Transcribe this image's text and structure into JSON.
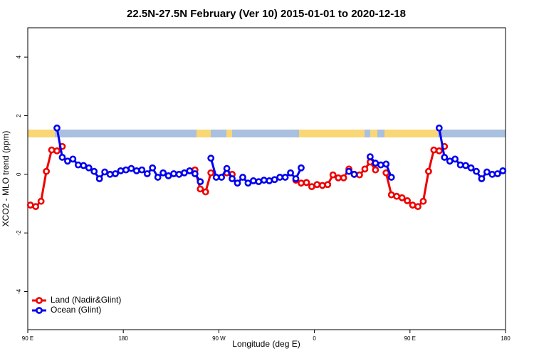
{
  "chart_data": {
    "type": "line",
    "title": "22.5N-27.5N February (Ver 10)   2015-01-01 to 2020-12-18",
    "x_label": "Longitude (deg E)",
    "y_label": "XCO2 - MLO trend (ppm)",
    "xlim": [
      90,
      540
    ],
    "xticks": [
      {
        "value": 90,
        "label": "90 E"
      },
      {
        "value": 180,
        "label": "180"
      },
      {
        "value": 270,
        "label": "90 W"
      },
      {
        "value": 360,
        "label": "0"
      },
      {
        "value": 450,
        "label": "90 E"
      },
      {
        "value": 540,
        "label": "180"
      }
    ],
    "ylim": [
      -5.3,
      5.0
    ],
    "yticks": [
      -4,
      -2,
      0,
      2,
      4
    ],
    "legend": "bottomleft",
    "x": [
      92.5,
      97.5,
      102.5,
      107.5,
      112.5,
      117.5,
      122.5,
      127.5,
      132.5,
      137.5,
      142.5,
      147.5,
      152.5,
      157.5,
      162.5,
      167.5,
      172.5,
      177.5,
      182.5,
      187.5,
      192.5,
      197.5,
      202.5,
      207.5,
      212.5,
      217.5,
      222.5,
      227.5,
      232.5,
      237.5,
      242.5,
      247.5,
      252.5,
      257.5,
      262.5,
      267.5,
      272.5,
      277.5,
      282.5,
      287.5,
      292.5,
      297.5,
      302.5,
      307.5,
      312.5,
      317.5,
      322.5,
      327.5,
      332.5,
      337.5,
      342.5,
      347.5,
      352.5,
      357.5,
      362.5,
      367.5,
      372.5,
      377.5,
      382.5,
      387.5,
      392.5,
      397.5,
      402.5,
      407.5,
      412.5,
      417.5,
      422.5,
      427.5,
      432.5,
      437.5,
      442.5,
      447.5,
      452.5,
      457.5,
      462.5,
      467.5,
      472.5,
      477.5,
      482.5,
      487.5,
      492.5,
      497.5,
      502.5,
      507.5,
      512.5,
      517.5,
      522.5,
      527.5,
      532.5,
      537.5
    ],
    "series": [
      {
        "name": "Land (Nadir&Glint)",
        "color": "#ee0000",
        "values": [
          -1.05,
          -1.1,
          -0.92,
          0.1,
          0.83,
          0.8,
          0.95,
          null,
          null,
          null,
          null,
          null,
          null,
          null,
          null,
          null,
          null,
          null,
          null,
          null,
          null,
          null,
          null,
          null,
          null,
          null,
          null,
          null,
          null,
          null,
          null,
          0.15,
          -0.5,
          -0.6,
          0.05,
          null,
          null,
          0.05,
          0.0,
          null,
          null,
          null,
          null,
          null,
          null,
          null,
          null,
          null,
          null,
          null,
          -0.2,
          -0.3,
          -0.28,
          -0.42,
          -0.35,
          -0.38,
          -0.35,
          -0.02,
          -0.12,
          -0.12,
          0.18,
          0.0,
          -0.02,
          0.18,
          0.42,
          0.15,
          null,
          0.05,
          -0.7,
          -0.75,
          -0.8,
          -0.9,
          -1.05,
          -1.1,
          -0.92,
          0.1,
          0.83,
          0.8,
          0.95,
          null,
          null,
          null,
          null,
          null,
          null,
          null,
          null,
          null,
          null,
          null
        ]
      },
      {
        "name": "Ocean (Glint)",
        "color": "#0000ee",
        "values": [
          null,
          null,
          null,
          null,
          null,
          1.58,
          0.58,
          0.45,
          0.52,
          0.32,
          0.3,
          0.22,
          0.1,
          -0.15,
          0.08,
          0.0,
          0.02,
          0.12,
          0.15,
          0.2,
          0.12,
          0.15,
          0.02,
          0.22,
          -0.1,
          0.05,
          -0.05,
          0.02,
          0.0,
          0.05,
          0.12,
          0.02,
          -0.25,
          null,
          0.55,
          -0.1,
          -0.1,
          0.2,
          -0.15,
          -0.3,
          -0.1,
          -0.3,
          -0.22,
          -0.25,
          -0.2,
          -0.22,
          -0.18,
          -0.1,
          -0.1,
          0.05,
          -0.15,
          0.22,
          null,
          null,
          null,
          null,
          null,
          null,
          null,
          null,
          0.1,
          0.0,
          null,
          null,
          0.6,
          0.38,
          0.32,
          0.35,
          -0.1,
          null,
          null,
          null,
          null,
          null,
          null,
          null,
          null,
          1.58,
          0.58,
          0.45,
          0.52,
          0.32,
          0.3,
          0.22,
          0.1,
          -0.15,
          0.08,
          0.0,
          0.02,
          0.12
        ]
      }
    ]
  }
}
